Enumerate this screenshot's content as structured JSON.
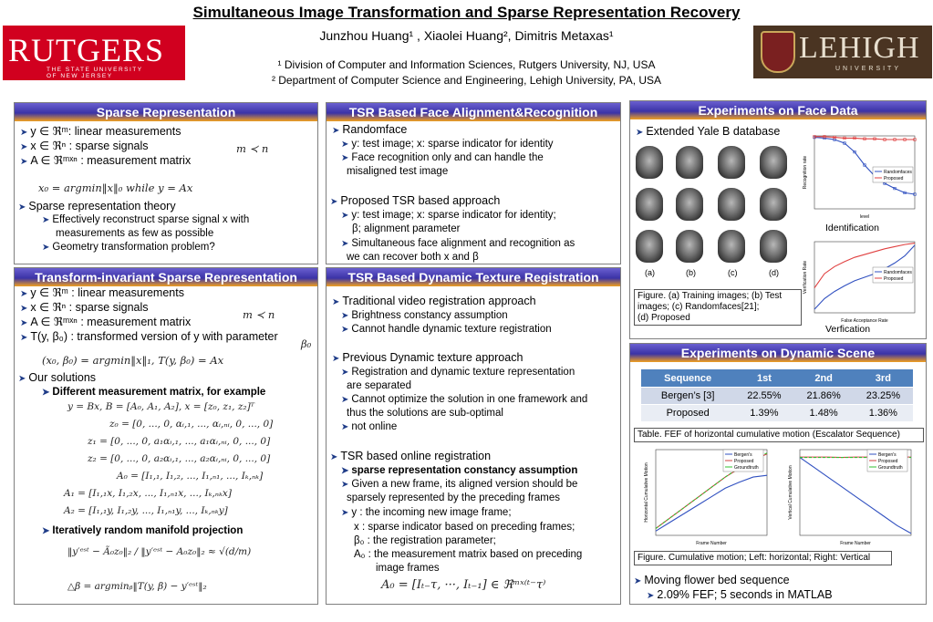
{
  "header": {
    "title": "Simultaneous Image Transformation and Sparse Representation Recovery",
    "authors": "Junzhou Huang¹ , Xiaolei Huang², Dimitris Metaxas¹",
    "affil1": "¹ Division of Computer and Information Sciences, Rutgers University, NJ, USA",
    "affil2": "² Department of Computer Science and Engineering, Lehigh University, PA, USA",
    "logo_left": "RUTGERS",
    "logo_left_sub1": "THE STATE UNIVERSITY",
    "logo_left_sub2": "OF NEW JERSEY",
    "logo_right": "LEHIGH",
    "logo_right_sub": "UNIVERSITY"
  },
  "sparse": {
    "heading": "Sparse Representation",
    "l1": "y ∈ ℜᵐ: linear measurements",
    "l2": "x ∈ ℜⁿ :  sparse signals",
    "l3": "A ∈ ℜᵐˣⁿ   : measurement matrix",
    "mn": "m ≺ n",
    "eq": "x₀ = argmin‖x‖₀   while   y = Ax",
    "theory": "Sparse representation theory",
    "t1a": "Effectively reconstruct sparse signal x with",
    "t1b": "measurements as few as possible",
    "t2": "Geometry transformation problem?"
  },
  "tisr": {
    "heading": "Transform-invariant Sparse Representation",
    "l1": "y ∈ ℜᵐ  : linear measurements",
    "l2": "x ∈ ℜⁿ   : sparse signals",
    "l3": "A ∈ ℜᵐˣⁿ   : measurement matrix",
    "l4": "T(y, β₀)   : transformed version of y with parameter",
    "mn": "m ≺ n",
    "beta": "β₀",
    "eq": "(x₀, β₀) = argmin‖x‖₁,   T(y, β₀) = Ax",
    "ours": "Our solutions",
    "diff": "Different measurement matrix, for example",
    "m1": "y = Bx, B = [A₀, A₁, A₂], x = [z₀, z₁, z₂]ᵀ",
    "m2": "z₀ = [0, ..., 0, αᵢ,₁, ..., αᵢ,ₙᵢ, 0, ..., 0]",
    "m3": "z₁ = [0, ..., 0, a₁αᵢ,₁, ..., a₁αᵢ,ₙᵢ, 0, ..., 0]",
    "m4": "z₂ = [0, ..., 0, a₂αᵢ,₁, ..., a₂αᵢ,ₙᵢ, 0, ..., 0]",
    "m5": "A₀ = [I₁,₁, I₁,₂, ..., I₁,ₙ₁, ..., Iₖ,ₙₖ]",
    "m6": "A₁ = [I₁,₁x, I₁,₂x, ..., I₁,ₙ₁x, ..., Iₖ,ₙₖx]",
    "m7": "A₂ = [I₁,₁y, I₁,₂y, ..., I₁,ₙ₁y, ..., Iₖ,ₙₖy]",
    "iter": "Iteratively random manifold projection",
    "r1": "‖y′ᵉˢᵗ − Ã₀z₀‖₂ / ‖y′ᵉˢᵗ − A₀z₀‖₂ ≈ √(d/m)",
    "r2": "△β = argminᵦ‖T(y, β) − y′ᵉˢᵗ‖₂"
  },
  "tsr_face": {
    "heading": "TSR Based Face Alignment&Recognition",
    "a": "Randomface",
    "a1": "y: test image;  x: sparse indicator for identity",
    "a2a": "Face recognition only and can handle the",
    "a2b": "misaligned test image",
    "b": "Proposed TSR based approach",
    "b1a": "y: test image;  x: sparse indicator for identity;",
    "b1b": "β; alignment parameter",
    "b2a": "Simultaneous face alignment and recognition as",
    "b2b": "we can recover both x and β"
  },
  "tsr_dyn": {
    "heading": "TSR Based Dynamic Texture Registration",
    "a": "Traditional video registration approach",
    "a1": "Brightness constancy assumption",
    "a2": "Cannot handle dynamic texture registration",
    "b": "Previous Dynamic texture approach",
    "b1a": "Registration and dynamic texture representation",
    "b1b": "are separated",
    "b2a": "Cannot optimize the solution in one framework and",
    "b2b": "thus the solutions are sub-optimal",
    "b3": "not online",
    "c": "TSR based online registration",
    "c1": "sparse representation constancy assumption",
    "c2a": "Given a new frame, its aligned version should be",
    "c2b": "sparsely represented by the preceding frames",
    "v1": "y  : the incoming new image frame;",
    "v2": "x  : sparse indicator based on preceding frames;",
    "v3": "β₀ : the registration parameter;",
    "v4a": "A₀ : the measurement matrix based on preceding",
    "v4b": "image frames",
    "eq": "A₀ = [Iₜ₋τ, ···, Iₜ₋₁] ∈ ℜᵐˣ⁽ᵗ⁻τ⁾"
  },
  "face_exp": {
    "heading": "Experiments on Face Data",
    "db": "Extended Yale B database",
    "cols": [
      "(a)",
      "(b)",
      "(c)",
      "(d)"
    ],
    "cap1": "Figure. (a) Training images;  (b) Test",
    "cap2": "images; (c) Randomfaces[21];",
    "cap3": "(d) Proposed",
    "id_label": "Identification",
    "ver_label": "Verfication",
    "chart_id": {
      "type": "line",
      "ylabel": "Recognition rate",
      "xlabel": "level",
      "ylim": [
        0,
        1
      ],
      "xlim": [
        0,
        10
      ],
      "x": [
        0,
        1,
        2,
        3,
        4,
        5,
        6,
        7,
        8,
        9,
        10
      ],
      "series": [
        {
          "name": "Randomfaces",
          "color": "#3050c0",
          "values": [
            0.98,
            0.97,
            0.95,
            0.9,
            0.78,
            0.6,
            0.45,
            0.35,
            0.28,
            0.22,
            0.2
          ]
        },
        {
          "name": "Proposed",
          "color": "#e04040",
          "values": [
            0.99,
            0.99,
            0.98,
            0.97,
            0.97,
            0.96,
            0.96,
            0.95,
            0.95,
            0.95,
            0.95
          ]
        }
      ]
    },
    "chart_ver": {
      "type": "line",
      "ylabel": "Verification Rate",
      "xlabel": "False Acceptance Rate",
      "ylim": [
        0,
        1
      ],
      "xlim": [
        0,
        1
      ],
      "x": [
        0,
        0.1,
        0.2,
        0.3,
        0.4,
        0.5,
        0.6,
        0.7,
        0.8,
        0.9,
        1.0
      ],
      "series": [
        {
          "name": "Randomfaces",
          "color": "#3050c0",
          "values": [
            0.05,
            0.2,
            0.3,
            0.38,
            0.45,
            0.5,
            0.55,
            0.62,
            0.7,
            0.8,
            0.95
          ]
        },
        {
          "name": "Proposed",
          "color": "#e04040",
          "values": [
            0.35,
            0.55,
            0.65,
            0.72,
            0.78,
            0.82,
            0.86,
            0.9,
            0.93,
            0.96,
            0.98
          ]
        }
      ]
    }
  },
  "dyn_exp": {
    "heading": "Experiments on Dynamic Scene",
    "table": {
      "headers": [
        "Sequence",
        "1st",
        "2nd",
        "3rd"
      ],
      "rows": [
        [
          "Bergen’s [3]",
          "22.55%",
          "21.86%",
          "23.25%"
        ],
        [
          "Proposed",
          "1.39%",
          "1.48%",
          "1.36%"
        ]
      ]
    },
    "tcap": "Table. FEF of horizontal cumulative motion (Escalator Sequence)",
    "fcap": "Figure. Cumulative motion; Left: horizontal; Right: Vertical",
    "flower": "Moving flower bed sequence",
    "fef": "2.09% FEF; 5 seconds in MATLAB",
    "chart_h": {
      "type": "line",
      "ylabel": "Horizontal Cumulative Motion",
      "xlabel": "Frame Number",
      "xlim": [
        80,
        160
      ],
      "ylim": [
        0,
        100
      ],
      "x": [
        80,
        90,
        100,
        110,
        120,
        130,
        140,
        150,
        160
      ],
      "series": [
        {
          "name": "Bergen's",
          "color": "#3050c0",
          "values": [
            5,
            15,
            25,
            35,
            45,
            55,
            62,
            68,
            70
          ]
        },
        {
          "name": "Proposed",
          "color": "#d04040",
          "values": [
            8,
            20,
            32,
            44,
            56,
            68,
            78,
            88,
            95
          ]
        },
        {
          "name": "Groundtruth",
          "color": "#30c030",
          "values": [
            8,
            20,
            32,
            44,
            56,
            68,
            79,
            89,
            96
          ]
        }
      ]
    },
    "chart_v": {
      "type": "line",
      "ylabel": "Vertical Cumulative Motion",
      "xlabel": "Frame Number",
      "xlim": [
        80,
        160
      ],
      "ylim": [
        -200,
        20
      ],
      "x": [
        80,
        90,
        100,
        110,
        120,
        130,
        140,
        150,
        160
      ],
      "series": [
        {
          "name": "Bergen's",
          "color": "#3050c0",
          "values": [
            0,
            -25,
            -50,
            -75,
            -100,
            -125,
            -150,
            -175,
            -195
          ]
        },
        {
          "name": "Proposed",
          "color": "#d04040",
          "values": [
            1,
            1,
            1,
            0,
            1,
            1,
            0,
            1,
            1
          ]
        },
        {
          "name": "Groundtruth",
          "color": "#30c030",
          "values": [
            0,
            0,
            0,
            0,
            0,
            0,
            0,
            0,
            0
          ]
        }
      ]
    }
  }
}
